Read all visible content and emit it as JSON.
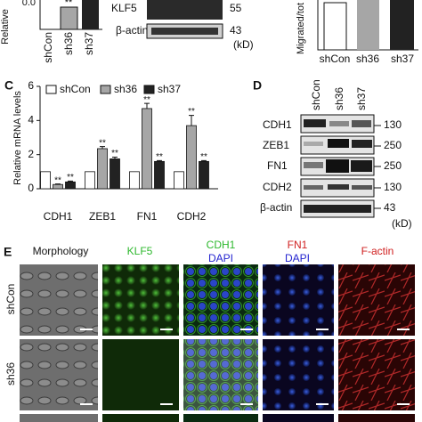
{
  "panel_a": {
    "y_label": "Relative",
    "ytick": "0.0",
    "significance": "**",
    "categories": [
      "shCon",
      "sh36",
      "sh37"
    ]
  },
  "panel_b_blot": {
    "bands": [
      {
        "label": "KLF5",
        "kd": "55"
      },
      {
        "label": "β-actin",
        "kd": "43"
      }
    ],
    "unit": "(kD)"
  },
  "panel_b_chart": {
    "y_label": "Migrated/tot",
    "categories": [
      "shCon",
      "sh36",
      "sh37"
    ]
  },
  "chart_data": {
    "type": "bar",
    "panel_label": "C",
    "y_label": "Relative mRNA levels",
    "categories": [
      "CDH1",
      "ZEB1",
      "FN1",
      "CDH2"
    ],
    "series": [
      {
        "name": "shCon",
        "color": "#ffffff",
        "values": [
          1,
          1,
          1,
          1
        ]
      },
      {
        "name": "sh36",
        "color": "#a6a6a6",
        "values": [
          0.25,
          2.35,
          4.7,
          3.7
        ],
        "errors": [
          0.03,
          0.12,
          0.3,
          0.6
        ],
        "significance": [
          "**",
          "**",
          "**",
          "**"
        ]
      },
      {
        "name": "sh37",
        "color": "#222222",
        "values": [
          0.4,
          1.75,
          1.6,
          1.6
        ],
        "errors": [
          0.05,
          0.1,
          0.05,
          0.05
        ],
        "significance": [
          "**",
          "**",
          "**",
          "**"
        ]
      }
    ],
    "ylim": [
      0,
      6
    ],
    "yticks": [
      0,
      2,
      4,
      6
    ]
  },
  "panel_d": {
    "letter": "D",
    "samples": [
      "shCon",
      "sh36",
      "sh37"
    ],
    "bands": [
      {
        "label": "CDH1",
        "kd": "130"
      },
      {
        "label": "ZEB1",
        "kd": "250"
      },
      {
        "label": "FN1",
        "kd": "250"
      },
      {
        "label": "CDH2",
        "kd": "130"
      },
      {
        "label": "β-actin",
        "kd": "43"
      }
    ],
    "unit": "(kD)"
  },
  "panel_e": {
    "letter": "E",
    "columns": [
      [
        "Morphology"
      ],
      [
        "KLF5"
      ],
      [
        "CDH1",
        "DAPI"
      ],
      [
        "FN1",
        "DAPI"
      ],
      [
        "F-actin"
      ]
    ],
    "rows": [
      "shCon",
      "sh36"
    ]
  }
}
